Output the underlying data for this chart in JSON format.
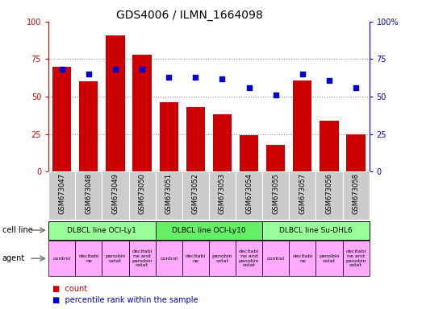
{
  "title": "GDS4006 / ILMN_1664098",
  "samples": [
    "GSM673047",
    "GSM673048",
    "GSM673049",
    "GSM673050",
    "GSM673051",
    "GSM673052",
    "GSM673053",
    "GSM673054",
    "GSM673055",
    "GSM673057",
    "GSM673056",
    "GSM673058"
  ],
  "counts": [
    70,
    60,
    91,
    78,
    46,
    43,
    38,
    24,
    18,
    61,
    34,
    25
  ],
  "percentiles": [
    68,
    65,
    68,
    68,
    63,
    63,
    62,
    56,
    51,
    65,
    61,
    56
  ],
  "bar_color": "#cc0000",
  "dot_color": "#0000cc",
  "ylim_left": [
    0,
    100
  ],
  "ylim_right": [
    0,
    100
  ],
  "yticks_left": [
    0,
    25,
    50,
    75,
    100
  ],
  "yticks_right": [
    0,
    25,
    50,
    75,
    100
  ],
  "cell_lines": [
    {
      "label": "DLBCL line OCI-Ly1",
      "start": 0,
      "end": 4,
      "color": "#99ff99"
    },
    {
      "label": "DLBCL line OCI-Ly10",
      "start": 4,
      "end": 8,
      "color": "#66ee66"
    },
    {
      "label": "DLBCL line Su-DHL6",
      "start": 8,
      "end": 12,
      "color": "#99ff99"
    }
  ],
  "agent_labels": [
    "control",
    "decitabi\nne",
    "panobin\nostat",
    "decitabi\nne and\npanobin\nostat",
    "control",
    "decitabi\nne",
    "panobin\nostat",
    "decitabi\nne and\npanobin\nostat",
    "control",
    "decitabi\nne",
    "panobin\nostat",
    "decitabi\nne and\npanobin\nostat"
  ],
  "agent_color": "#ffaaff",
  "tick_bg_color": "#cccccc",
  "left_axis_color": "#cc0000",
  "right_axis_color": "#0000cc",
  "grid_color": "#888888",
  "figure_bg": "#ffffff",
  "title_fontsize": 10,
  "bar_width": 0.7
}
